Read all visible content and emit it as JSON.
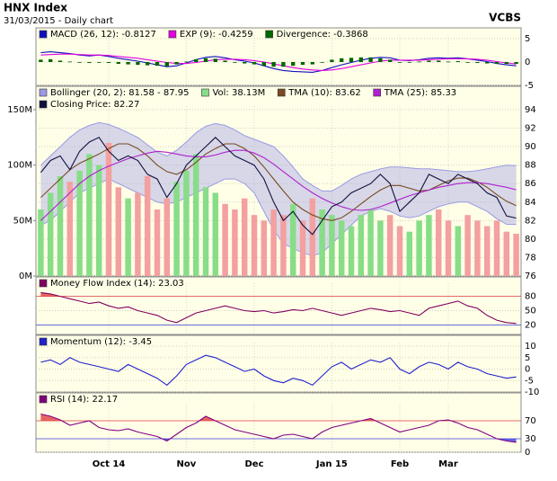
{
  "header": {
    "title": "HNX Index",
    "subtitle": "31/03/2015 - Daily chart",
    "brand": "VCBS"
  },
  "chart_data": [
    {
      "type": "line",
      "ylim": [
        -5,
        5
      ],
      "yticks": [
        5,
        0,
        -5
      ],
      "grid": true,
      "series": [
        {
          "name": "MACD (26, 12): -0.8127",
          "color": "#1010c0",
          "values": [
            2,
            2.2,
            2,
            1.8,
            1.5,
            1.3,
            1.5,
            1.2,
            0.8,
            0.5,
            0.2,
            -0.2,
            -0.6,
            -1,
            -0.8,
            -0.2,
            0.5,
            1,
            1.2,
            0.9,
            0.5,
            0.2,
            -0.2,
            -0.8,
            -1.4,
            -1.8,
            -2,
            -2.1,
            -2.2,
            -1.8,
            -1.2,
            -0.6,
            -0.1,
            0.4,
            0.8,
            1,
            0.9,
            0.4,
            0.3,
            0.5,
            0.8,
            0.9,
            0.8,
            0.9,
            0.7,
            0.4,
            0.1,
            -0.3,
            -0.6,
            -0.8127
          ]
        },
        {
          "name": "EXP (9): -0.4259",
          "color": "#e000e0",
          "values": [
            1.5,
            1.6,
            1.7,
            1.7,
            1.6,
            1.5,
            1.5,
            1.4,
            1.2,
            1,
            0.8,
            0.5,
            0.2,
            -0.1,
            -0.3,
            -0.3,
            -0.1,
            0.2,
            0.5,
            0.6,
            0.6,
            0.5,
            0.3,
            0,
            -0.4,
            -0.8,
            -1.2,
            -1.5,
            -1.7,
            -1.8,
            -1.7,
            -1.4,
            -1,
            -0.6,
            -0.2,
            0.2,
            0.4,
            0.4,
            0.4,
            0.4,
            0.5,
            0.6,
            0.7,
            0.7,
            0.7,
            0.6,
            0.4,
            0.1,
            -0.2,
            -0.4259
          ]
        },
        {
          "name": "Divergence: -0.3868",
          "color": "#006600",
          "type": "bar",
          "values": [
            0.5,
            0.6,
            0.3,
            0.1,
            -0.1,
            -0.2,
            0,
            -0.2,
            -0.4,
            -0.5,
            -0.6,
            -0.7,
            -0.8,
            -0.9,
            -0.5,
            0.1,
            0.6,
            0.8,
            0.7,
            0.3,
            -0.1,
            -0.3,
            -0.5,
            -0.8,
            -1,
            -1,
            -0.8,
            -0.6,
            -0.5,
            0,
            0.5,
            0.8,
            0.9,
            1,
            1,
            0.8,
            0.5,
            0,
            -0.1,
            0.1,
            0.3,
            0.3,
            0.1,
            0.2,
            0,
            -0.2,
            -0.3,
            -0.4,
            -0.4,
            -0.3868
          ]
        }
      ]
    },
    {
      "type": "line",
      "ylim": [
        76,
        94
      ],
      "yticks": [
        94,
        92,
        90,
        88,
        86,
        84,
        82,
        80,
        78,
        76
      ],
      "grid": true,
      "y2lim": [
        0,
        150
      ],
      "y2ticks": [
        {
          "value": 150,
          "label": "150M"
        },
        {
          "value": 100,
          "label": "100M"
        },
        {
          "value": 50,
          "label": "50M"
        },
        {
          "value": 0,
          "label": "0M"
        }
      ],
      "series": [
        {
          "name": "Bollinger (20, 2): 81.58 - 87.95",
          "color": "#9a9ae6",
          "type": "band",
          "upper": [
            88,
            89,
            90,
            91,
            91.8,
            92.3,
            92.6,
            92.4,
            92,
            91.5,
            91,
            90.2,
            89.4,
            89,
            89.6,
            90.5,
            91.5,
            92.2,
            92.5,
            92.3,
            91.8,
            91.2,
            90.8,
            90.4,
            90,
            89,
            87.8,
            86.5,
            85.8,
            85.2,
            85.2,
            85.8,
            86.5,
            87,
            87.3,
            87.6,
            87.8,
            87.8,
            87.7,
            87.6,
            87.6,
            87.5,
            87.4,
            87.3,
            87.3,
            87.4,
            87.6,
            87.8,
            88,
            87.95
          ],
          "lower": [
            81.5,
            82,
            83,
            84,
            85,
            85.5,
            86,
            86.5,
            86,
            85.5,
            85,
            84.5,
            84,
            83.8,
            84,
            84.5,
            85,
            85.5,
            86,
            86.5,
            86.5,
            86,
            85,
            83,
            81,
            79.5,
            79,
            78.5,
            78.2,
            78.5,
            79.5,
            80.5,
            81.5,
            82.5,
            83,
            83.3,
            83,
            82.5,
            82.3,
            82.5,
            83,
            83.5,
            83.8,
            84,
            84,
            83.5,
            83,
            82.2,
            81.6,
            81.58
          ]
        },
        {
          "name": "Vol: 38.13M",
          "color": "#88dd88",
          "type": "bar",
          "axis": "y2",
          "values": [
            60,
            75,
            90,
            85,
            95,
            110,
            100,
            120,
            80,
            70,
            75,
            90,
            60,
            70,
            85,
            95,
            110,
            80,
            75,
            65,
            60,
            70,
            55,
            50,
            60,
            55,
            65,
            50,
            70,
            60,
            55,
            50,
            45,
            55,
            60,
            50,
            55,
            45,
            40,
            50,
            55,
            60,
            50,
            45,
            55,
            50,
            45,
            50,
            40,
            38.13
          ],
          "colors": [
            "#88dd88",
            "#88dd88",
            "#88dd88",
            "#f4a0a0",
            "#88dd88",
            "#88dd88",
            "#88dd88",
            "#f4a0a0",
            "#f4a0a0",
            "#88dd88",
            "#f4a0a0",
            "#f4a0a0",
            "#f4a0a0",
            "#f4a0a0",
            "#88dd88",
            "#88dd88",
            "#88dd88",
            "#88dd88",
            "#88dd88",
            "#f4a0a0",
            "#f4a0a0",
            "#f4a0a0",
            "#f4a0a0",
            "#f4a0a0",
            "#f4a0a0",
            "#f4a0a0",
            "#88dd88",
            "#f4a0a0",
            "#f4a0a0",
            "#88dd88",
            "#88dd88",
            "#88dd88",
            "#88dd88",
            "#88dd88",
            "#88dd88",
            "#88dd88",
            "#f4a0a0",
            "#f4a0a0",
            "#88dd88",
            "#88dd88",
            "#88dd88",
            "#f4a0a0",
            "#f4a0a0",
            "#88dd88",
            "#f4a0a0",
            "#f4a0a0",
            "#f4a0a0",
            "#f4a0a0",
            "#f4a0a0",
            "#f4a0a0"
          ]
        },
        {
          "name": "TMA (10): 83.62",
          "color": "#7a4a20",
          "values": [
            84.5,
            85.5,
            86.5,
            87.5,
            88.2,
            88.7,
            89.2,
            89.8,
            90.3,
            90.3,
            89.8,
            89,
            88,
            87.3,
            87,
            87.5,
            88.3,
            89.2,
            89.8,
            90.3,
            90.3,
            89.8,
            89,
            87.8,
            86.5,
            85.2,
            84,
            83.2,
            82.6,
            82.2,
            82,
            82.3,
            83,
            83.8,
            84.6,
            85.3,
            85.8,
            85.8,
            85.5,
            85.2,
            85.3,
            85.8,
            86.3,
            86.6,
            86.6,
            86.2,
            85.6,
            84.8,
            84.1,
            83.62
          ]
        },
        {
          "name": "TMA (25): 85.33",
          "color": "#b020d0",
          "values": [
            82,
            83,
            84,
            85,
            86,
            86.8,
            87.4,
            87.9,
            88.3,
            88.7,
            89,
            89.3,
            89.5,
            89.4,
            89.2,
            89,
            88.9,
            88.9,
            89.1,
            89.4,
            89.6,
            89.6,
            89.3,
            88.8,
            88.1,
            87.3,
            86.5,
            85.7,
            85,
            84.4,
            83.9,
            83.5,
            83.2,
            83.1,
            83.2,
            83.5,
            83.9,
            84.3,
            84.7,
            85,
            85.3,
            85.6,
            85.8,
            86,
            86.1,
            86.1,
            86,
            85.8,
            85.6,
            85.33
          ]
        },
        {
          "name": "Closing Price: 82.27",
          "color": "#101040",
          "values": [
            87.2,
            88.5,
            89,
            87.5,
            89.5,
            90.5,
            91,
            89.5,
            88.5,
            89,
            88.5,
            87,
            86.5,
            84.5,
            86,
            88,
            89,
            90,
            91,
            90,
            89,
            88.5,
            88,
            86.5,
            84,
            82,
            83,
            81.5,
            80.5,
            82,
            83.5,
            84,
            85,
            85.5,
            86,
            87,
            86,
            83,
            84,
            85,
            87,
            86.5,
            86,
            87,
            86.5,
            86,
            85,
            84.5,
            82.5,
            82.27
          ]
        }
      ]
    },
    {
      "type": "line",
      "ylim": [
        0,
        100
      ],
      "yticks": [
        80,
        50,
        20
      ],
      "grid": true,
      "ref_lines": [
        {
          "value": 80,
          "color": "#e04040",
          "fill": "above"
        },
        {
          "value": 20,
          "color": "#4040e0",
          "fill": "below"
        }
      ],
      "series": [
        {
          "name": "Money Flow Index (14): 23.03",
          "color": "#800060",
          "values": [
            88,
            85,
            80,
            75,
            70,
            65,
            68,
            60,
            55,
            58,
            50,
            45,
            40,
            30,
            25,
            35,
            45,
            50,
            55,
            60,
            55,
            50,
            48,
            50,
            45,
            48,
            52,
            50,
            55,
            50,
            45,
            40,
            45,
            50,
            55,
            52,
            48,
            50,
            45,
            40,
            55,
            60,
            65,
            70,
            60,
            55,
            40,
            30,
            25,
            23.03
          ]
        }
      ]
    },
    {
      "type": "line",
      "ylim": [
        -10,
        10
      ],
      "yticks": [
        10,
        5,
        0,
        -5,
        -10
      ],
      "grid": true,
      "series": [
        {
          "name": "Momentum (12): -3.45",
          "color": "#2020cc",
          "values": [
            3,
            4,
            2,
            5,
            3,
            2,
            1,
            0,
            -1,
            2,
            0,
            -2,
            -4,
            -7,
            -3,
            2,
            4,
            6,
            5,
            3,
            1,
            -1,
            0,
            -3,
            -5,
            -6,
            -4,
            -5,
            -7,
            -3,
            1,
            3,
            0,
            2,
            4,
            3,
            5,
            0,
            -2,
            1,
            3,
            2,
            0,
            3,
            1,
            0,
            -2,
            -3,
            -4,
            -3.45
          ]
        }
      ]
    },
    {
      "type": "line",
      "ylim": [
        0,
        100
      ],
      "yticks": [
        70,
        30,
        0
      ],
      "grid": true,
      "ref_lines": [
        {
          "value": 70,
          "color": "#e04040",
          "fill": "above"
        },
        {
          "value": 30,
          "color": "#4040e0",
          "fill": "below"
        }
      ],
      "categories": [
        null,
        null,
        null,
        null,
        null,
        null,
        null,
        "Oct 14",
        null,
        null,
        null,
        null,
        null,
        null,
        null,
        "Nov",
        null,
        null,
        null,
        null,
        null,
        null,
        "Dec",
        null,
        null,
        null,
        null,
        null,
        null,
        null,
        "Jan 15",
        null,
        null,
        null,
        null,
        null,
        null,
        "Feb",
        null,
        null,
        null,
        null,
        "Mar",
        null,
        null,
        null,
        null,
        null,
        null,
        null
      ],
      "series": [
        {
          "name": "RSI (14): 22.17",
          "color": "#800080",
          "values": [
            85,
            80,
            72,
            60,
            65,
            70,
            55,
            50,
            48,
            52,
            45,
            40,
            35,
            25,
            40,
            55,
            65,
            80,
            70,
            60,
            50,
            45,
            40,
            35,
            30,
            38,
            40,
            35,
            30,
            45,
            55,
            60,
            65,
            70,
            75,
            65,
            55,
            45,
            50,
            55,
            60,
            70,
            72,
            65,
            55,
            50,
            40,
            30,
            25,
            22.17
          ]
        }
      ]
    }
  ]
}
